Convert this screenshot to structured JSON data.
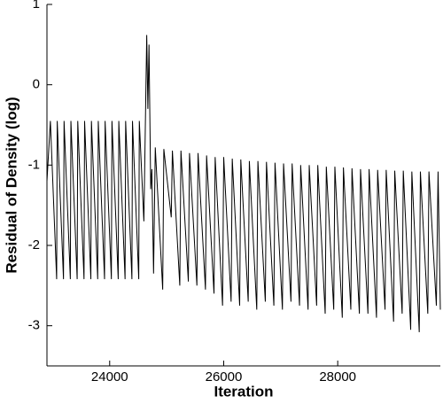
{
  "chart_data": {
    "type": "line",
    "xlabel": "Iteration",
    "ylabel": "Residual of Density (log)",
    "xlim": [
      22900,
      29800
    ],
    "xticks": [
      24000,
      26000,
      28000
    ],
    "ylim": [
      -3.5,
      1
    ],
    "yticks": [
      1,
      0,
      -1,
      -2,
      -3
    ],
    "color": "#000000",
    "x": [
      22900,
      22960,
      23070,
      23080,
      23190,
      23200,
      23310,
      23320,
      23430,
      23440,
      23550,
      23560,
      23670,
      23680,
      23790,
      23800,
      23910,
      23920,
      24030,
      24040,
      24150,
      24160,
      24270,
      24280,
      24390,
      24400,
      24510,
      24520,
      24600,
      24650,
      24670,
      24690,
      24720,
      24740,
      24770,
      24800,
      24930,
      24950,
      25080,
      25100,
      25230,
      25250,
      25380,
      25400,
      25530,
      25550,
      25680,
      25700,
      25830,
      25850,
      25980,
      26000,
      26130,
      26150,
      26280,
      26300,
      26430,
      26450,
      26580,
      26600,
      26730,
      26750,
      26880,
      26900,
      27030,
      27050,
      27180,
      27200,
      27330,
      27350,
      27480,
      27500,
      27630,
      27650,
      27780,
      27800,
      27930,
      27950,
      28080,
      28100,
      28230,
      28250,
      28380,
      28400,
      28530,
      28550,
      28680,
      28700,
      28830,
      28850,
      28980,
      29000,
      29130,
      29150,
      29280,
      29300,
      29430,
      29450,
      29580,
      29600,
      29730,
      29760,
      29800
    ],
    "values": [
      -1.2,
      -0.45,
      -2.42,
      -0.45,
      -2.42,
      -0.45,
      -2.42,
      -0.45,
      -2.42,
      -0.45,
      -2.42,
      -0.45,
      -2.42,
      -0.45,
      -2.42,
      -0.45,
      -2.42,
      -0.45,
      -2.42,
      -0.45,
      -2.42,
      -0.45,
      -2.42,
      -0.45,
      -2.42,
      -0.45,
      -2.42,
      -0.45,
      -1.7,
      0.62,
      -0.3,
      0.5,
      -1.3,
      -1.05,
      -2.35,
      -0.78,
      -2.55,
      -0.8,
      -1.65,
      -0.82,
      -2.5,
      -0.82,
      -2.45,
      -0.85,
      -2.5,
      -0.85,
      -2.55,
      -0.88,
      -2.6,
      -0.9,
      -2.75,
      -0.9,
      -2.7,
      -0.92,
      -2.75,
      -0.93,
      -2.7,
      -0.95,
      -2.8,
      -0.95,
      -2.7,
      -0.96,
      -2.75,
      -0.97,
      -2.8,
      -0.98,
      -2.7,
      -0.98,
      -2.75,
      -1.0,
      -2.8,
      -1.0,
      -2.75,
      -1.0,
      -2.85,
      -1.02,
      -2.8,
      -1.02,
      -2.9,
      -1.03,
      -2.8,
      -1.04,
      -2.85,
      -1.05,
      -2.85,
      -1.05,
      -2.9,
      -1.06,
      -2.8,
      -1.06,
      -2.95,
      -1.07,
      -2.85,
      -1.07,
      -3.05,
      -1.08,
      -3.08,
      -1.08,
      -2.85,
      -1.08,
      -2.75,
      -1.08,
      -2.8
    ]
  }
}
